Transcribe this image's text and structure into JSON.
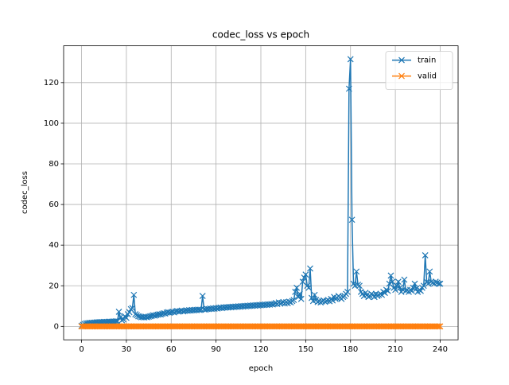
{
  "chart_data": {
    "type": "line",
    "title": "codec_loss vs epoch",
    "x_label": "epoch",
    "y_label": "codec_loss",
    "x": [
      0,
      1,
      2,
      3,
      4,
      5,
      6,
      7,
      8,
      9,
      10,
      11,
      12,
      13,
      14,
      15,
      16,
      17,
      18,
      19,
      20,
      21,
      22,
      23,
      24,
      25,
      26,
      27,
      28,
      29,
      30,
      31,
      32,
      33,
      34,
      35,
      36,
      37,
      38,
      39,
      40,
      41,
      42,
      43,
      44,
      45,
      46,
      47,
      48,
      49,
      50,
      51,
      52,
      53,
      54,
      55,
      56,
      57,
      58,
      59,
      60,
      61,
      62,
      63,
      64,
      65,
      66,
      67,
      68,
      69,
      70,
      71,
      72,
      73,
      74,
      75,
      76,
      77,
      78,
      79,
      80,
      81,
      82,
      83,
      84,
      85,
      86,
      87,
      88,
      89,
      90,
      91,
      92,
      93,
      94,
      95,
      96,
      97,
      98,
      99,
      100,
      101,
      102,
      103,
      104,
      105,
      106,
      107,
      108,
      109,
      110,
      111,
      112,
      113,
      114,
      115,
      116,
      117,
      118,
      119,
      120,
      121,
      122,
      123,
      124,
      125,
      126,
      127,
      128,
      129,
      130,
      131,
      132,
      133,
      134,
      135,
      136,
      137,
      138,
      139,
      140,
      141,
      142,
      143,
      144,
      145,
      146,
      147,
      148,
      149,
      150,
      151,
      152,
      153,
      154,
      155,
      156,
      157,
      158,
      159,
      160,
      161,
      162,
      163,
      164,
      165,
      166,
      167,
      168,
      169,
      170,
      171,
      172,
      173,
      174,
      175,
      176,
      177,
      178,
      179,
      180,
      181,
      182,
      183,
      184,
      185,
      186,
      187,
      188,
      189,
      190,
      191,
      192,
      193,
      194,
      195,
      196,
      197,
      198,
      199,
      200,
      201,
      202,
      203,
      204,
      205,
      206,
      207,
      208,
      209,
      210,
      211,
      212,
      213,
      214,
      215,
      216,
      217,
      218,
      219,
      220,
      221,
      222,
      223,
      224,
      225,
      226,
      227,
      228,
      229,
      230,
      231,
      232,
      233,
      234,
      235,
      236,
      237,
      238,
      239,
      240
    ],
    "series": [
      {
        "name": "train",
        "color": "#1f77b4",
        "values": [
          0.3,
          0.8,
          1.2,
          1.5,
          1.6,
          1.7,
          1.8,
          1.8,
          1.9,
          1.9,
          2.0,
          2.0,
          2.1,
          2.1,
          2.1,
          2.2,
          2.2,
          2.2,
          2.3,
          2.3,
          2.3,
          2.4,
          2.4,
          2.5,
          2.5,
          7.2,
          4.5,
          3.0,
          3.5,
          5.0,
          4.2,
          6.0,
          7.0,
          8.5,
          9.0,
          15.5,
          6.0,
          5.5,
          5.0,
          4.8,
          4.5,
          4.6,
          4.4,
          4.7,
          4.5,
          4.8,
          5.0,
          5.2,
          5.5,
          5.3,
          5.6,
          5.8,
          6.0,
          5.9,
          6.2,
          6.5,
          6.3,
          6.8,
          7.0,
          6.7,
          7.0,
          7.2,
          6.9,
          7.4,
          7.6,
          7.3,
          7.5,
          7.8,
          7.4,
          7.6,
          7.9,
          7.7,
          8.0,
          7.8,
          8.1,
          7.9,
          8.2,
          8.0,
          8.3,
          8.1,
          8.2,
          15.0,
          8.4,
          8.3,
          8.6,
          8.5,
          8.8,
          8.6,
          8.9,
          8.7,
          9.0,
          8.8,
          9.1,
          9.3,
          9.0,
          9.4,
          9.2,
          9.5,
          9.3,
          9.6,
          9.4,
          9.7,
          9.5,
          9.8,
          9.6,
          9.9,
          9.7,
          10.0,
          9.8,
          10.1,
          9.9,
          10.2,
          10.0,
          10.3,
          10.1,
          10.4,
          10.2,
          10.5,
          10.3,
          10.6,
          10.4,
          10.7,
          10.5,
          10.8,
          10.6,
          10.9,
          10.7,
          11.0,
          10.8,
          11.1,
          11.5,
          11.0,
          11.8,
          11.2,
          11.6,
          12.0,
          11.3,
          11.9,
          11.4,
          12.2,
          11.8,
          12.5,
          13.0,
          17.0,
          19.0,
          14.5,
          16.0,
          13.5,
          22.0,
          24.0,
          25.5,
          20.0,
          19.0,
          28.5,
          14.0,
          12.5,
          15.5,
          13.0,
          12.0,
          12.5,
          11.8,
          12.3,
          12.8,
          12.1,
          12.6,
          13.0,
          12.4,
          13.5,
          12.8,
          14.5,
          13.5,
          14.0,
          15.0,
          14.2,
          13.5,
          14.5,
          15.0,
          16.0,
          17.0,
          117.0,
          131.5,
          52.5,
          21.0,
          20.0,
          27.0,
          20.5,
          20.0,
          17.0,
          16.0,
          15.0,
          16.5,
          15.5,
          14.5,
          15.0,
          16.0,
          15.5,
          14.5,
          16.0,
          15.0,
          15.5,
          16.0,
          15.5,
          17.0,
          16.5,
          18.0,
          17.5,
          21.0,
          25.0,
          22.0,
          19.0,
          18.0,
          20.0,
          22.0,
          19.0,
          17.0,
          18.0,
          23.0,
          17.5,
          18.0,
          17.0,
          18.0,
          17.5,
          19.0,
          21.0,
          18.5,
          17.0,
          18.0,
          17.5,
          19.0,
          20.0,
          35.0,
          22.0,
          21.0,
          27.0,
          22.0,
          21.5,
          21.0,
          22.0,
          21.5,
          21.0,
          21.0
        ]
      },
      {
        "name": "valid",
        "color": "#ff7f0e",
        "values": [
          0,
          0,
          0,
          0,
          0,
          0,
          0,
          0,
          0,
          0,
          0,
          0,
          0,
          0,
          0,
          0,
          0,
          0,
          0,
          0,
          0,
          0,
          0,
          0,
          0,
          0,
          0,
          0,
          0,
          0,
          0,
          0,
          0,
          0,
          0,
          0,
          0,
          0,
          0,
          0,
          0,
          0,
          0,
          0,
          0,
          0,
          0,
          0,
          0,
          0,
          0,
          0,
          0,
          0,
          0,
          0,
          0,
          0,
          0,
          0,
          0,
          0,
          0,
          0,
          0,
          0,
          0,
          0,
          0,
          0,
          0,
          0,
          0,
          0,
          0,
          0,
          0,
          0,
          0,
          0,
          0,
          0,
          0,
          0,
          0,
          0,
          0,
          0,
          0,
          0,
          0,
          0,
          0,
          0,
          0,
          0,
          0,
          0,
          0,
          0,
          0,
          0,
          0,
          0,
          0,
          0,
          0,
          0,
          0,
          0,
          0,
          0,
          0,
          0,
          0,
          0,
          0,
          0,
          0,
          0,
          0,
          0,
          0,
          0,
          0,
          0,
          0,
          0,
          0,
          0,
          0,
          0,
          0,
          0,
          0,
          0,
          0,
          0,
          0,
          0,
          0,
          0,
          0,
          0,
          0,
          0,
          0,
          0,
          0,
          0,
          0,
          0,
          0,
          0,
          0,
          0,
          0,
          0,
          0,
          0,
          0,
          0,
          0,
          0,
          0,
          0,
          0,
          0,
          0,
          0,
          0,
          0,
          0,
          0,
          0,
          0,
          0,
          0,
          0,
          0,
          0,
          0,
          0,
          0,
          0,
          0,
          0,
          0,
          0,
          0,
          0,
          0,
          0,
          0,
          0,
          0,
          0,
          0,
          0,
          0,
          0,
          0,
          0,
          0,
          0,
          0,
          0,
          0,
          0,
          0,
          0,
          0,
          0,
          0,
          0,
          0,
          0,
          0,
          0,
          0,
          0,
          0,
          0,
          0,
          0,
          0,
          0,
          0,
          0,
          0,
          0,
          0,
          0,
          0,
          0,
          0,
          0,
          0,
          0,
          0,
          0
        ]
      }
    ],
    "xlim": [
      -12,
      252
    ],
    "ylim": [
      -6.6,
      138.1
    ],
    "xticks": [
      0,
      30,
      60,
      90,
      120,
      150,
      180,
      210,
      240
    ],
    "yticks": [
      0,
      20,
      40,
      60,
      80,
      100,
      120
    ],
    "grid": true,
    "legend": "upper right",
    "marker": "x"
  }
}
